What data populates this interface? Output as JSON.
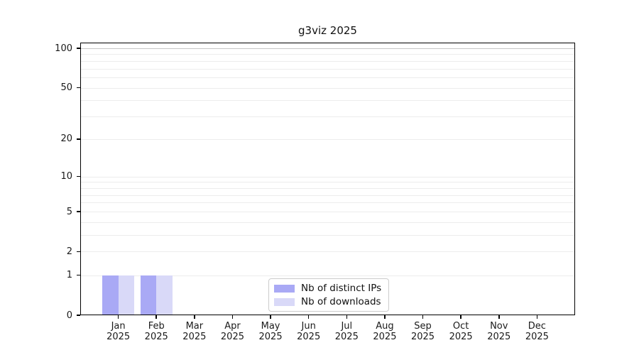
{
  "title": "g3viz 2025",
  "chart_data": {
    "type": "bar",
    "title": "g3viz 2025",
    "categories": [
      "Jan",
      "Feb",
      "Mar",
      "Apr",
      "May",
      "Jun",
      "Jul",
      "Aug",
      "Sep",
      "Oct",
      "Nov",
      "Dec"
    ],
    "category_sublabel": "2025",
    "series": [
      {
        "name": "Nb of distinct IPs",
        "color": "#a9a9f5",
        "values": [
          1,
          1,
          0,
          0,
          0,
          0,
          0,
          0,
          0,
          0,
          0,
          0
        ]
      },
      {
        "name": "Nb of downloads",
        "color": "#d9d9f8",
        "values": [
          1,
          1,
          0,
          0,
          0,
          0,
          0,
          0,
          0,
          0,
          0,
          0
        ]
      }
    ],
    "ylim": [
      0,
      100
    ],
    "y_scale": "log10(value+1)",
    "y_tick_labels": [
      0,
      1,
      2,
      5,
      10,
      20,
      50,
      100
    ],
    "y_gridlines_minor": [
      1,
      2,
      3,
      4,
      5,
      6,
      7,
      8,
      9,
      10,
      20,
      30,
      40,
      50,
      60,
      70,
      80,
      90
    ],
    "y_gridlines_major": [
      100
    ],
    "grid": true,
    "legend_position": "bottom-center",
    "colors": {
      "bar_primary": "#a9a9f5",
      "bar_secondary": "#d9d9f8",
      "grid_minor": "#ececec",
      "grid_major": "#c6c6c6",
      "axis": "#000000",
      "background": "#ffffff",
      "legend_border": "#cccccc"
    }
  }
}
